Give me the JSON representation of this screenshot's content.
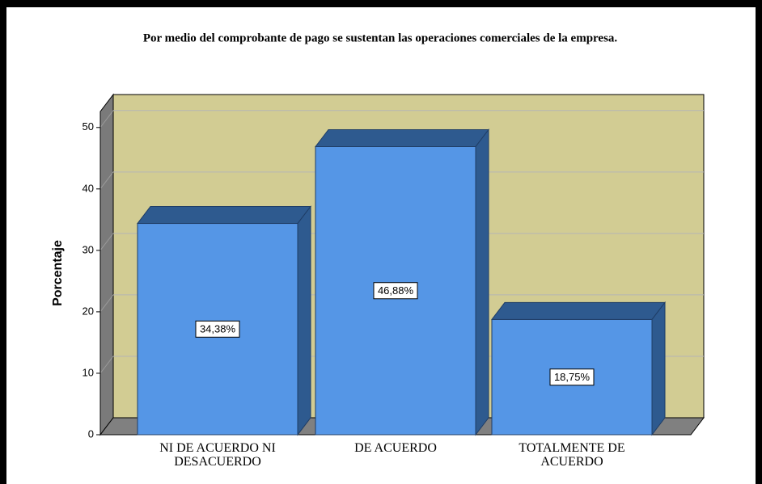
{
  "chart_data": {
    "type": "bar",
    "title": "Por medio del comprobante de pago se sustentan las operaciones comerciales de la empresa.",
    "y_label": "Porcentaje",
    "categories": [
      "NI DE ACUERDO NI DESACUERDO",
      "DE ACUERDO",
      "TOTALMENTE DE ACUERDO"
    ],
    "values": [
      34.38,
      46.88,
      18.75
    ],
    "value_labels": [
      "34,38%",
      "46,88%",
      "18,75%"
    ],
    "color": "#5596e6",
    "ylim": [
      0,
      52.6
    ],
    "yticks": [
      0,
      10,
      20,
      30,
      40,
      50
    ],
    "grid": true
  }
}
